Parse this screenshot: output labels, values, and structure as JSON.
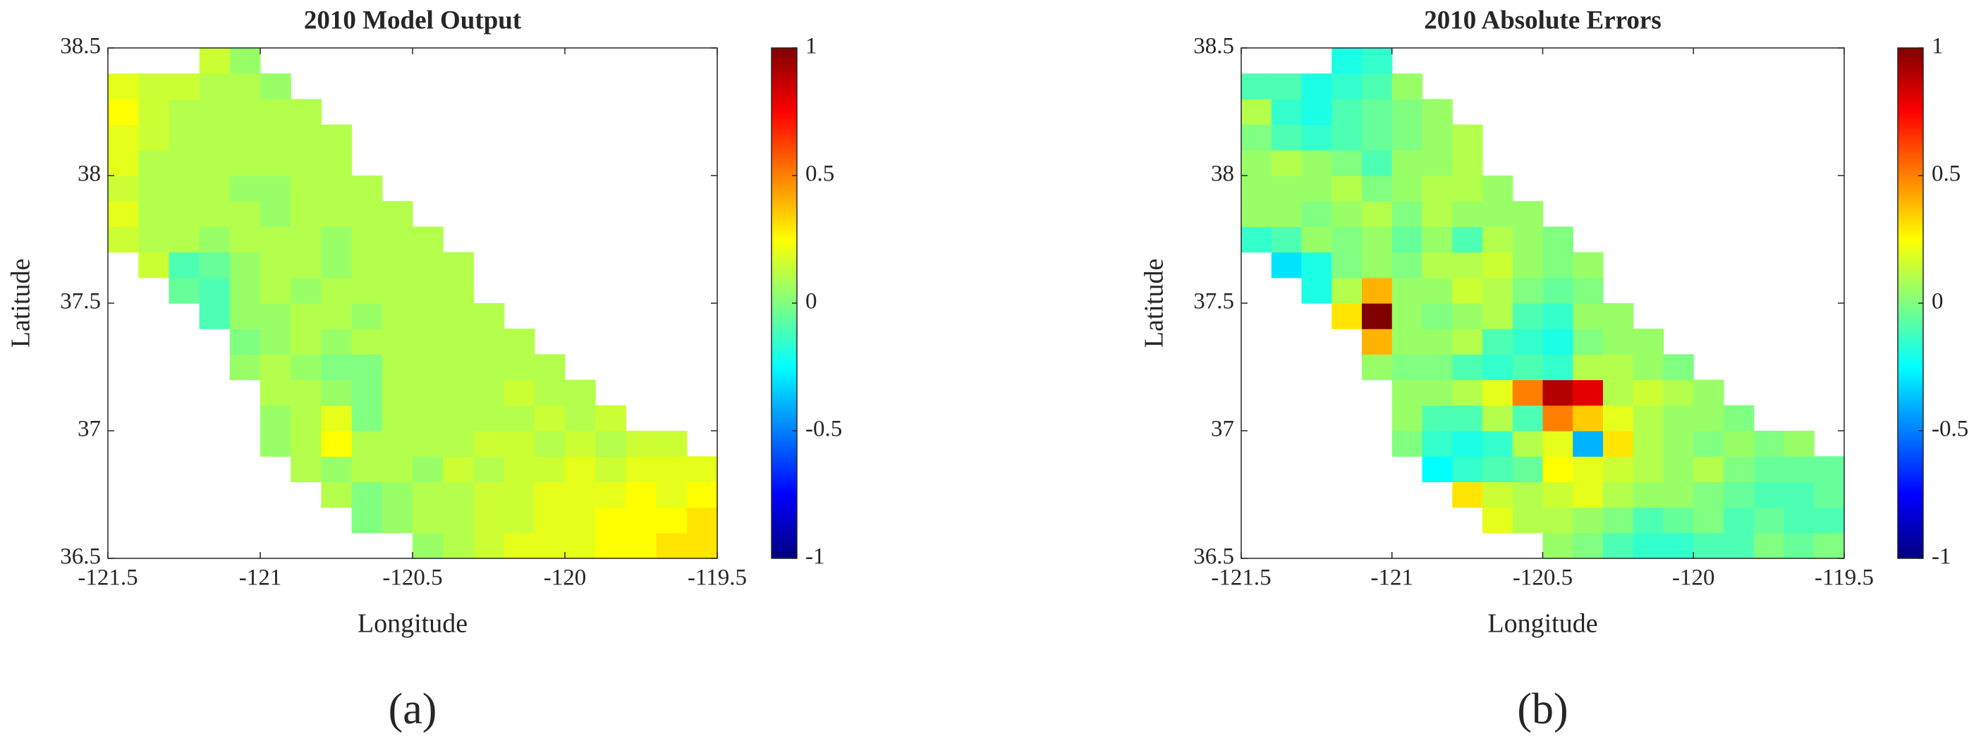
{
  "chart_data": [
    {
      "type": "heatmap",
      "title": "2010 Model Output",
      "xlabel": "Longitude",
      "ylabel": "Latitude",
      "panel_label": "(a)",
      "xlim": [
        -121.5,
        -119.5
      ],
      "ylim": [
        36.5,
        38.5
      ],
      "xticks": [
        -121.5,
        -121,
        -120.5,
        -120,
        -119.5
      ],
      "yticks": [
        36.5,
        37,
        37.5,
        38,
        38.5
      ],
      "colormap": "jet",
      "clim": [
        -1,
        1
      ],
      "cticks": [
        -1,
        -0.5,
        0,
        0.5,
        1
      ],
      "x": [
        -121.45,
        -121.35,
        -121.25,
        -121.15,
        -121.05,
        -120.95,
        -120.85,
        -120.75,
        -120.65,
        -120.55,
        -120.45,
        -120.35,
        -120.25,
        -120.15,
        -120.05,
        -119.95,
        -119.85,
        -119.75,
        -119.65,
        -119.55
      ],
      "y": [
        36.55,
        36.65,
        36.75,
        36.85,
        36.95,
        37.05,
        37.15,
        37.25,
        37.35,
        37.45,
        37.55,
        37.65,
        37.75,
        37.85,
        37.95,
        38.05,
        38.15,
        38.25,
        38.35,
        38.45
      ],
      "z": [
        [
          null,
          null,
          null,
          null,
          null,
          null,
          null,
          null,
          null,
          null,
          0.05,
          0.1,
          0.15,
          0.2,
          0.2,
          0.2,
          0.25,
          0.25,
          0.3,
          0.3
        ],
        [
          null,
          null,
          null,
          null,
          null,
          null,
          null,
          null,
          0.0,
          0.05,
          0.1,
          0.1,
          0.15,
          0.15,
          0.2,
          0.2,
          0.25,
          0.25,
          0.25,
          0.3
        ],
        [
          null,
          null,
          null,
          null,
          null,
          null,
          null,
          0.1,
          0.0,
          0.05,
          0.1,
          0.1,
          0.15,
          0.15,
          0.2,
          0.2,
          0.2,
          0.25,
          0.2,
          0.25
        ],
        [
          null,
          null,
          null,
          null,
          null,
          null,
          0.1,
          0.05,
          0.1,
          0.1,
          0.05,
          0.15,
          0.1,
          0.15,
          0.15,
          0.2,
          0.15,
          0.2,
          0.2,
          0.2
        ],
        [
          null,
          null,
          null,
          null,
          null,
          0.05,
          0.1,
          0.25,
          0.1,
          0.1,
          0.1,
          0.1,
          0.15,
          0.15,
          0.1,
          0.15,
          0.1,
          0.15,
          0.15,
          null
        ],
        [
          null,
          null,
          null,
          null,
          null,
          0.05,
          0.1,
          0.2,
          0.0,
          0.1,
          0.1,
          0.1,
          0.1,
          0.1,
          0.15,
          0.1,
          0.15,
          null,
          null,
          null
        ],
        [
          null,
          null,
          null,
          null,
          null,
          0.1,
          0.1,
          0.05,
          0.0,
          0.1,
          0.1,
          0.1,
          0.1,
          0.15,
          0.1,
          0.1,
          null,
          null,
          null,
          null
        ],
        [
          null,
          null,
          null,
          null,
          0.05,
          0.1,
          0.05,
          0.0,
          0.0,
          0.1,
          0.1,
          0.1,
          0.1,
          0.1,
          0.1,
          null,
          null,
          null,
          null,
          null
        ],
        [
          null,
          null,
          null,
          null,
          0.0,
          0.05,
          0.1,
          0.05,
          0.1,
          0.1,
          0.1,
          0.1,
          0.1,
          0.1,
          null,
          null,
          null,
          null,
          null,
          null
        ],
        [
          null,
          null,
          null,
          -0.1,
          0.05,
          0.05,
          0.1,
          0.1,
          0.05,
          0.1,
          0.1,
          0.1,
          0.1,
          null,
          null,
          null,
          null,
          null,
          null,
          null
        ],
        [
          null,
          null,
          -0.05,
          -0.1,
          0.05,
          0.1,
          0.05,
          0.1,
          0.1,
          0.1,
          0.1,
          0.1,
          null,
          null,
          null,
          null,
          null,
          null,
          null,
          null
        ],
        [
          null,
          0.15,
          -0.1,
          -0.05,
          0.05,
          0.1,
          0.1,
          0.05,
          0.1,
          0.1,
          0.1,
          0.1,
          null,
          null,
          null,
          null,
          null,
          null,
          null,
          null
        ],
        [
          0.15,
          0.1,
          0.1,
          0.05,
          0.1,
          0.1,
          0.1,
          0.05,
          0.1,
          0.1,
          0.1,
          null,
          null,
          null,
          null,
          null,
          null,
          null,
          null,
          null
        ],
        [
          0.2,
          0.1,
          0.1,
          0.1,
          0.1,
          0.05,
          0.1,
          0.1,
          0.1,
          0.1,
          null,
          null,
          null,
          null,
          null,
          null,
          null,
          null,
          null,
          null
        ],
        [
          0.15,
          0.1,
          0.1,
          0.1,
          0.05,
          0.05,
          0.1,
          0.1,
          0.1,
          null,
          null,
          null,
          null,
          null,
          null,
          null,
          null,
          null,
          null,
          null
        ],
        [
          0.2,
          0.1,
          0.1,
          0.1,
          0.1,
          0.1,
          0.1,
          0.1,
          null,
          null,
          null,
          null,
          null,
          null,
          null,
          null,
          null,
          null,
          null,
          null
        ],
        [
          0.2,
          0.15,
          0.1,
          0.1,
          0.1,
          0.1,
          0.1,
          0.1,
          null,
          null,
          null,
          null,
          null,
          null,
          null,
          null,
          null,
          null,
          null,
          null
        ],
        [
          0.25,
          0.15,
          0.1,
          0.1,
          0.1,
          0.1,
          0.1,
          null,
          null,
          null,
          null,
          null,
          null,
          null,
          null,
          null,
          null,
          null,
          null,
          null
        ],
        [
          0.2,
          0.15,
          0.15,
          0.1,
          0.1,
          0.05,
          null,
          null,
          null,
          null,
          null,
          null,
          null,
          null,
          null,
          null,
          null,
          null,
          null,
          null
        ],
        [
          null,
          null,
          null,
          0.15,
          0.05,
          null,
          null,
          null,
          null,
          null,
          null,
          null,
          null,
          null,
          null,
          null,
          null,
          null,
          null,
          null
        ]
      ]
    },
    {
      "type": "heatmap",
      "title": "2010 Absolute Errors",
      "xlabel": "Longitude",
      "ylabel": "Latitude",
      "panel_label": "(b)",
      "xlim": [
        -121.5,
        -119.5
      ],
      "ylim": [
        36.5,
        38.5
      ],
      "xticks": [
        -121.5,
        -121,
        -120.5,
        -120,
        -119.5
      ],
      "yticks": [
        36.5,
        37,
        37.5,
        38,
        38.5
      ],
      "colormap": "jet",
      "clim": [
        -1,
        1
      ],
      "cticks": [
        -1,
        -0.5,
        0,
        0.5,
        1
      ],
      "x": [
        -121.45,
        -121.35,
        -121.25,
        -121.15,
        -121.05,
        -120.95,
        -120.85,
        -120.75,
        -120.65,
        -120.55,
        -120.45,
        -120.35,
        -120.25,
        -120.15,
        -120.05,
        -119.95,
        -119.85,
        -119.75,
        -119.65,
        -119.55
      ],
      "y": [
        36.55,
        36.65,
        36.75,
        36.85,
        36.95,
        37.05,
        37.15,
        37.25,
        37.35,
        37.45,
        37.55,
        37.65,
        37.75,
        37.85,
        37.95,
        38.05,
        38.15,
        38.25,
        38.35,
        38.45
      ],
      "z": [
        [
          null,
          null,
          null,
          null,
          null,
          null,
          null,
          null,
          null,
          null,
          0.05,
          0.0,
          -0.1,
          -0.15,
          -0.15,
          -0.1,
          -0.1,
          0.0,
          -0.05,
          0.0
        ],
        [
          null,
          null,
          null,
          null,
          null,
          null,
          null,
          null,
          0.2,
          0.1,
          0.1,
          0.05,
          0.0,
          -0.1,
          -0.05,
          0.0,
          -0.1,
          -0.05,
          -0.1,
          -0.1
        ],
        [
          null,
          null,
          null,
          null,
          null,
          null,
          null,
          0.3,
          0.15,
          0.1,
          0.15,
          0.2,
          0.1,
          0.05,
          0.05,
          0.0,
          -0.05,
          -0.1,
          -0.1,
          -0.05
        ],
        [
          null,
          null,
          null,
          null,
          null,
          null,
          -0.25,
          -0.15,
          -0.1,
          -0.05,
          0.25,
          0.2,
          0.15,
          0.1,
          0.05,
          0.1,
          0.0,
          -0.05,
          -0.05,
          -0.05
        ],
        [
          null,
          null,
          null,
          null,
          null,
          0.0,
          -0.15,
          -0.2,
          -0.15,
          0.1,
          0.2,
          -0.4,
          0.3,
          0.1,
          0.05,
          0.0,
          0.05,
          0.0,
          0.05,
          null
        ],
        [
          null,
          null,
          null,
          null,
          null,
          0.05,
          -0.1,
          -0.1,
          0.1,
          -0.1,
          0.5,
          0.35,
          0.2,
          0.1,
          0.05,
          0.05,
          0.0,
          null,
          null,
          null
        ],
        [
          null,
          null,
          null,
          null,
          null,
          0.05,
          0.05,
          0.1,
          0.2,
          0.5,
          0.9,
          0.8,
          0.1,
          0.15,
          0.1,
          0.05,
          null,
          null,
          null,
          null
        ],
        [
          null,
          null,
          null,
          null,
          0.05,
          0.0,
          0.0,
          -0.1,
          -0.15,
          -0.1,
          -0.15,
          0.1,
          0.1,
          0.05,
          0.0,
          null,
          null,
          null,
          null,
          null
        ],
        [
          null,
          null,
          null,
          null,
          0.4,
          0.05,
          0.05,
          0.1,
          -0.1,
          -0.15,
          -0.2,
          0.0,
          0.05,
          0.05,
          null,
          null,
          null,
          null,
          null,
          null
        ],
        [
          null,
          null,
          null,
          0.3,
          1.0,
          0.05,
          0.0,
          0.05,
          0.1,
          -0.1,
          -0.15,
          0.05,
          0.05,
          null,
          null,
          null,
          null,
          null,
          null,
          null
        ],
        [
          null,
          null,
          -0.2,
          0.1,
          0.4,
          0.05,
          0.05,
          0.15,
          0.1,
          0.0,
          -0.05,
          0.0,
          null,
          null,
          null,
          null,
          null,
          null,
          null,
          null
        ],
        [
          null,
          -0.3,
          -0.2,
          0.0,
          0.05,
          0.0,
          0.1,
          0.1,
          0.15,
          0.05,
          0.0,
          0.05,
          null,
          null,
          null,
          null,
          null,
          null,
          null,
          null
        ],
        [
          -0.15,
          -0.1,
          0.05,
          0.0,
          0.05,
          -0.05,
          0.05,
          -0.1,
          0.1,
          0.05,
          0.0,
          null,
          null,
          null,
          null,
          null,
          null,
          null,
          null,
          null
        ],
        [
          0.05,
          0.05,
          0.0,
          0.05,
          0.1,
          0.0,
          0.1,
          0.05,
          0.05,
          0.05,
          null,
          null,
          null,
          null,
          null,
          null,
          null,
          null,
          null,
          null
        ],
        [
          0.05,
          0.05,
          0.05,
          0.1,
          0.0,
          0.05,
          0.1,
          0.1,
          0.05,
          null,
          null,
          null,
          null,
          null,
          null,
          null,
          null,
          null,
          null,
          null
        ],
        [
          0.05,
          0.1,
          0.05,
          0.0,
          -0.1,
          0.05,
          0.05,
          0.1,
          null,
          null,
          null,
          null,
          null,
          null,
          null,
          null,
          null,
          null,
          null,
          null
        ],
        [
          0.0,
          -0.1,
          -0.15,
          -0.1,
          -0.05,
          0.0,
          0.05,
          0.1,
          null,
          null,
          null,
          null,
          null,
          null,
          null,
          null,
          null,
          null,
          null,
          null
        ],
        [
          0.1,
          -0.15,
          -0.2,
          -0.1,
          -0.05,
          0.0,
          0.05,
          null,
          null,
          null,
          null,
          null,
          null,
          null,
          null,
          null,
          null,
          null,
          null,
          null
        ],
        [
          -0.1,
          -0.1,
          -0.2,
          -0.15,
          -0.1,
          0.05,
          null,
          null,
          null,
          null,
          null,
          null,
          null,
          null,
          null,
          null,
          null,
          null,
          null,
          null
        ],
        [
          null,
          null,
          null,
          -0.2,
          -0.15,
          null,
          null,
          null,
          null,
          null,
          null,
          null,
          null,
          null,
          null,
          null,
          null,
          null,
          null,
          null
        ]
      ]
    }
  ]
}
